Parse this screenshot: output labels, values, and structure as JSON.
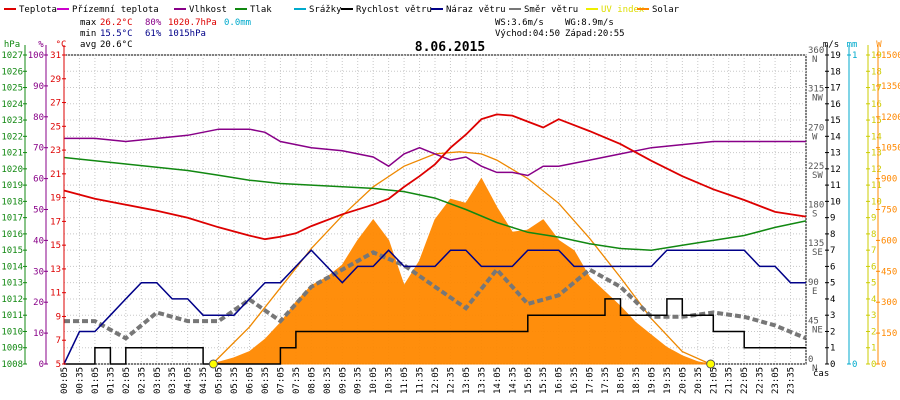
{
  "chart_data": {
    "type": "line",
    "title": "8.06.2015",
    "xlabel": "čas",
    "x_ticks": [
      "00:05",
      "00:35",
      "01:05",
      "01:35",
      "02:05",
      "02:35",
      "03:05",
      "03:35",
      "04:05",
      "04:35",
      "05:05",
      "05:35",
      "06:05",
      "06:35",
      "07:05",
      "07:35",
      "08:05",
      "08:35",
      "09:05",
      "09:35",
      "10:05",
      "10:35",
      "11:05",
      "11:35",
      "12:05",
      "12:35",
      "13:05",
      "13:35",
      "14:05",
      "14:35",
      "15:05",
      "15:35",
      "16:05",
      "16:35",
      "17:05",
      "17:35",
      "18:05",
      "18:35",
      "19:05",
      "19:35",
      "20:05",
      "20:35",
      "21:05",
      "21:35",
      "22:05",
      "22:35",
      "23:05",
      "23:35"
    ],
    "legend": [
      {
        "name": "Teplota",
        "color": "#dd0000"
      },
      {
        "name": "Přízemní teplota",
        "color": "#cc00cc"
      },
      {
        "name": "Vlhkost",
        "color": "#880088"
      },
      {
        "name": "Tlak",
        "color": "#118811"
      },
      {
        "name": "Srážky",
        "color": "#00aacc"
      },
      {
        "name": "Rychlost větru",
        "color": "#000000"
      },
      {
        "name": "Náraz větru",
        "color": "#000088"
      },
      {
        "name": "Směr větru",
        "color": "#777777"
      },
      {
        "name": "UV index",
        "color": "#eeee00"
      },
      {
        "name": "Solar",
        "color": "#ff8800"
      }
    ],
    "stats": {
      "max": {
        "label": "max",
        "temp": "26.2°C",
        "hum": "80%",
        "press": "1020.7hPa",
        "rain": "0.0mm"
      },
      "min": {
        "label": "min",
        "temp": "15.5°C",
        "hum": "61%",
        "press": "1015hPa"
      },
      "avg": {
        "label": "avg",
        "temp": "20.6°C"
      }
    },
    "info": {
      "ws": "WS:3.6m/s",
      "wg": "WG:8.9m/s",
      "sunrise": "Východ:04:50",
      "sunset": "Západ:20:55"
    },
    "axes": {
      "hpa": {
        "unit": "hPa",
        "range": [
          1008,
          1027
        ],
        "ticks": [
          "1008",
          "1009",
          "1010",
          "1011",
          "1012",
          "1013",
          "1014",
          "1015",
          "1016",
          "1017",
          "1018",
          "1019",
          "1020",
          "1021",
          "1022",
          "1023",
          "1024",
          "1025",
          "1026",
          "1027"
        ]
      },
      "pct": {
        "unit": "%",
        "range": [
          0,
          100
        ],
        "ticks": [
          "0",
          "10",
          "20",
          "30",
          "40",
          "50",
          "60",
          "70",
          "80",
          "90",
          "100"
        ]
      },
      "temp": {
        "unit": "°C",
        "range": [
          5,
          31
        ],
        "ticks": [
          "5",
          "7",
          "9",
          "11",
          "13",
          "15",
          "17",
          "19",
          "21",
          "23",
          "25",
          "27",
          "29",
          "31"
        ]
      },
      "dir": {
        "unit": "",
        "range": [
          0,
          360
        ],
        "ticks": [
          {
            "deg": "0",
            "name": "N"
          },
          {
            "deg": "45",
            "name": "NE"
          },
          {
            "deg": "90",
            "name": "E"
          },
          {
            "deg": "135",
            "name": "SE"
          },
          {
            "deg": "180",
            "name": "S"
          },
          {
            "deg": "225",
            "name": "SW"
          },
          {
            "deg": "270",
            "name": "W"
          },
          {
            "deg": "315",
            "name": "NW"
          },
          {
            "deg": "360",
            "name": "N"
          }
        ]
      },
      "ms": {
        "unit": "m/s",
        "range": [
          0,
          19
        ],
        "ticks": [
          "0",
          "1",
          "2",
          "3",
          "4",
          "5",
          "6",
          "7",
          "8",
          "9",
          "10",
          "11",
          "12",
          "13",
          "14",
          "15",
          "16",
          "17",
          "18",
          "19"
        ]
      },
      "mm": {
        "unit": "mm",
        "range": [
          0,
          1
        ],
        "ticks": [
          "0",
          "1"
        ]
      },
      "uv": {
        "unit": "",
        "range": [
          0,
          19
        ],
        "ticks": [
          "0",
          "1",
          "2",
          "3",
          "4",
          "5",
          "6",
          "7",
          "8",
          "9",
          "10",
          "11",
          "12",
          "13",
          "14",
          "15",
          "16",
          "17",
          "18",
          "19"
        ]
      },
      "w": {
        "unit": "W",
        "range": [
          0,
          1500
        ],
        "ticks": [
          "0",
          "150",
          "300",
          "450",
          "600",
          "750",
          "900",
          "1050",
          "1200",
          "1350",
          "1500"
        ]
      }
    },
    "series": [
      {
        "name": "Teplota",
        "unit": "°C",
        "color": "#dd0000",
        "x": [
          0,
          1,
          2,
          3,
          4,
          5,
          6,
          6.5,
          7,
          7.5,
          8,
          9,
          10,
          10.5,
          11,
          11.5,
          12,
          12.5,
          13,
          13.5,
          14,
          14.5,
          15,
          15.5,
          16,
          17,
          18,
          19,
          20,
          21,
          22,
          23,
          24
        ],
        "values": [
          19.6,
          18.9,
          18.4,
          17.9,
          17.3,
          16.5,
          15.8,
          15.5,
          15.7,
          16.0,
          16.6,
          17.6,
          18.4,
          18.9,
          19.9,
          20.8,
          21.8,
          23.2,
          24.3,
          25.6,
          26.0,
          25.9,
          25.4,
          24.9,
          25.6,
          24.6,
          23.5,
          22.1,
          20.8,
          19.7,
          18.8,
          17.8,
          17.4
        ]
      },
      {
        "name": "Vlhkost",
        "unit": "%",
        "color": "#880088",
        "x": [
          0,
          1,
          2,
          3,
          4,
          5,
          6,
          6.5,
          7,
          7.5,
          8,
          9,
          10,
          10.5,
          11,
          11.5,
          12,
          12.5,
          13,
          13.5,
          14,
          14.5,
          15,
          15.5,
          16,
          17,
          18,
          19,
          20,
          21,
          22,
          23,
          24
        ],
        "values": [
          73,
          73,
          72,
          73,
          74,
          76,
          76,
          75,
          72,
          71,
          70,
          69,
          67,
          64,
          68,
          70,
          68,
          66,
          67,
          64,
          62,
          62,
          61,
          64,
          64,
          66,
          68,
          70,
          71,
          72,
          72,
          72,
          72
        ]
      },
      {
        "name": "Tlak",
        "unit": "hPa",
        "color": "#118811",
        "x": [
          0,
          1,
          2,
          3,
          4,
          5,
          6,
          7,
          8,
          9,
          10,
          11,
          11.5,
          12,
          13,
          14,
          15,
          16,
          17,
          18,
          19,
          20,
          21,
          22,
          23,
          24
        ],
        "values": [
          1020.7,
          1020.5,
          1020.3,
          1020.1,
          1019.9,
          1019.6,
          1019.3,
          1019.1,
          1019.0,
          1018.9,
          1018.8,
          1018.6,
          1018.4,
          1018.2,
          1017.5,
          1016.7,
          1016.1,
          1015.8,
          1015.4,
          1015.1,
          1015.0,
          1015.3,
          1015.6,
          1015.9,
          1016.4,
          1016.8
        ]
      },
      {
        "name": "Rychlost větru",
        "unit": "m/s",
        "color": "#000000",
        "x": [
          0,
          1,
          1.5,
          2,
          3,
          4,
          4.5,
          5,
          6,
          7,
          7.5,
          8,
          9,
          10,
          11,
          12,
          13,
          14,
          15,
          15.5,
          16,
          17,
          17.5,
          18,
          19,
          19.5,
          20,
          21,
          22,
          23,
          24
        ],
        "values": [
          0,
          1,
          0,
          1,
          1,
          1,
          0,
          0,
          0,
          1,
          2,
          2,
          2,
          2,
          2,
          2,
          2,
          2,
          3,
          3,
          3,
          3,
          4,
          3,
          3,
          4,
          3,
          2,
          1,
          1,
          1
        ]
      },
      {
        "name": "Náraz větru",
        "unit": "m/s",
        "color": "#000088",
        "x": [
          0,
          0.5,
          1,
          1.5,
          2,
          2.5,
          3,
          3.5,
          4,
          4.5,
          5,
          5.5,
          6,
          6.5,
          7,
          7.5,
          8,
          8.5,
          9,
          9.5,
          10,
          10.5,
          11,
          11.5,
          12,
          12.5,
          13,
          13.5,
          14,
          14.5,
          15,
          15.5,
          16,
          16.5,
          17,
          17.5,
          18,
          18.5,
          19,
          19.5,
          20,
          20.5,
          21,
          21.5,
          22,
          22.5,
          23,
          23.5,
          24
        ],
        "values": [
          0,
          2,
          2,
          3,
          4,
          5,
          5,
          4,
          4,
          3,
          3,
          3,
          4,
          5,
          5,
          6,
          7,
          6,
          5,
          6,
          6,
          7,
          6,
          6,
          6,
          7,
          7,
          6,
          6,
          6,
          7,
          7,
          7,
          6,
          6,
          6,
          6,
          6,
          6,
          7,
          7,
          7,
          7,
          7,
          7,
          6,
          6,
          5,
          5
        ]
      },
      {
        "name": "Směr větru",
        "unit": "°",
        "color": "#777777",
        "x": [
          0,
          1,
          2,
          3,
          4,
          5,
          6,
          7,
          8,
          9,
          10,
          11,
          12,
          13,
          14,
          15,
          16,
          17,
          18,
          19,
          20,
          21,
          22,
          23,
          24
        ],
        "values": [
          50,
          50,
          30,
          60,
          50,
          50,
          75,
          50,
          90,
          110,
          130,
          115,
          90,
          65,
          110,
          70,
          80,
          110,
          90,
          55,
          55,
          60,
          55,
          45,
          30
        ]
      },
      {
        "name": "Solar",
        "unit": "W",
        "color": "#ff8800",
        "x": [
          4.8,
          5.5,
          6,
          6.5,
          7,
          7.5,
          8,
          8.5,
          9,
          9.5,
          10,
          10.5,
          11,
          11.5,
          12,
          12.5,
          13,
          13.5,
          14,
          14.5,
          15,
          15.5,
          16,
          16.5,
          17,
          17.5,
          18,
          18.5,
          19,
          19.5,
          20,
          20.5,
          20.9
        ],
        "values": [
          0,
          30,
          60,
          120,
          200,
          300,
          380,
          420,
          480,
          600,
          700,
          600,
          380,
          500,
          700,
          800,
          780,
          900,
          760,
          640,
          650,
          700,
          600,
          550,
          420,
          350,
          280,
          200,
          140,
          80,
          40,
          10,
          0
        ]
      },
      {
        "name": "Solar max",
        "unit": "W",
        "color": "#ff8800",
        "x": [
          4.8,
          6,
          7,
          8,
          9,
          10,
          11,
          12,
          12.8,
          13.5,
          14,
          15,
          16,
          17,
          18,
          19,
          20,
          20.9
        ],
        "values": [
          0,
          180,
          370,
          560,
          720,
          860,
          960,
          1020,
          1030,
          1020,
          990,
          900,
          780,
          610,
          420,
          220,
          60,
          0
        ]
      }
    ],
    "uv_markers": [
      {
        "time": "04:50",
        "value": 0
      },
      {
        "time": "20:55",
        "value": 0
      }
    ]
  }
}
